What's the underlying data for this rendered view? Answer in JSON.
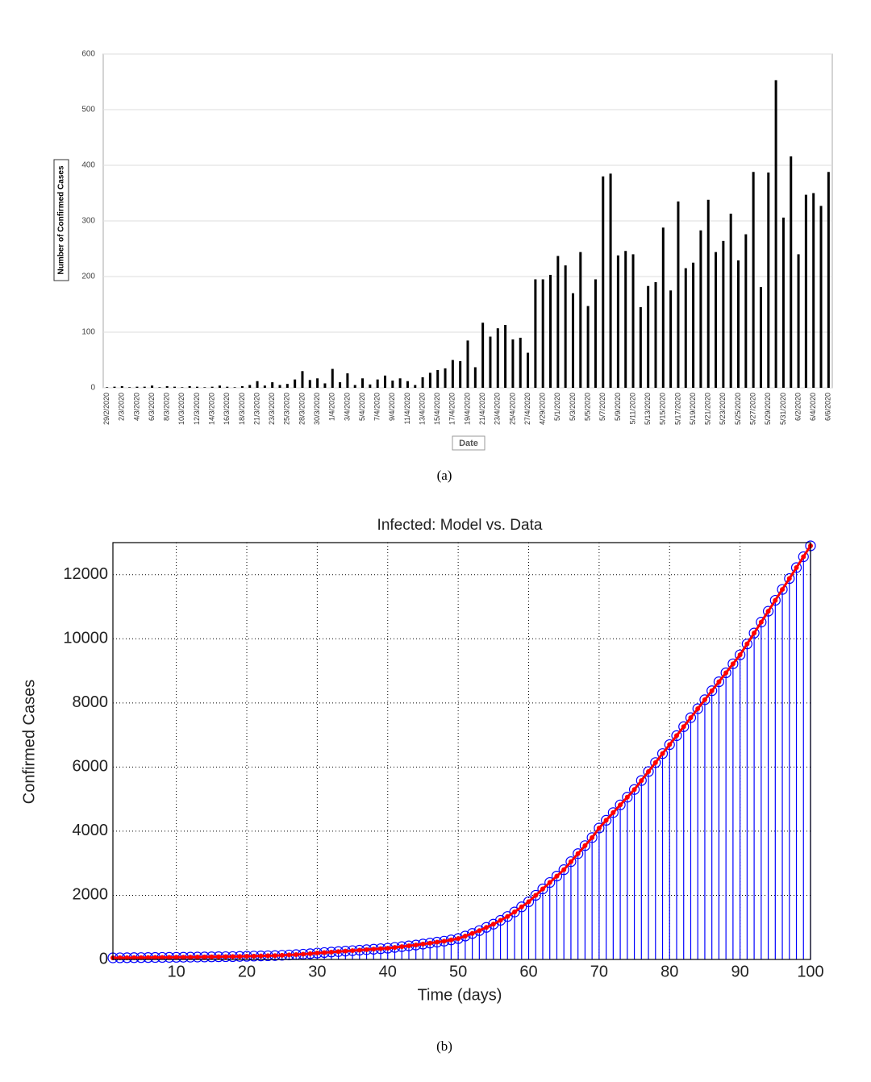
{
  "chart_data": [
    {
      "type": "bar",
      "xlabel": "Date",
      "ylabel": "Number of Confirmed Cases",
      "caption": "(a)",
      "color": "#000000",
      "grid": true,
      "ylim": [
        0,
        600
      ],
      "yticks": [
        0,
        100,
        200,
        300,
        400,
        500,
        600
      ],
      "categories": [
        "29/2/2020",
        null,
        "2/3/2020",
        null,
        "4/3/2020",
        null,
        "6/3/2020",
        null,
        "8/3/2020",
        null,
        "10/3/2020",
        null,
        "12/3/2020",
        null,
        "14/3/2020",
        null,
        "16/3/2020",
        null,
        "18/3/2020",
        null,
        "21/3/2020",
        null,
        "23/3/2020",
        null,
        "25/3/2020",
        null,
        "28/3/2020",
        null,
        "30/3/2020",
        null,
        "1/4/2020",
        null,
        "3/4/2020",
        null,
        "5/4/2020",
        null,
        "7/4/2020",
        null,
        "9/4/2020",
        null,
        "11/4/2020",
        null,
        "13/4/2020",
        null,
        "15/4/2020",
        null,
        "17/4/2020",
        null,
        "19/4/2020",
        null,
        "21/4/2020",
        null,
        "23/4/2020",
        null,
        "25/4/2020",
        null,
        "27/4/2020",
        null,
        "4/29/2020",
        null,
        "5/1/2020",
        null,
        "5/3/2020",
        null,
        "5/5/2020",
        null,
        "5/7/2020",
        null,
        "5/9/2020",
        null,
        "5/11/2020",
        null,
        "5/13/2020",
        null,
        "5/15/2020",
        null,
        "5/17/2020",
        null,
        "5/19/2020",
        null,
        "5/21/2020",
        null,
        "5/23/2020",
        null,
        "5/25/2020",
        null,
        "5/27/2020",
        null,
        "5/29/2020",
        null,
        "5/31/2020",
        null,
        "6/2/2020",
        null,
        "6/4/2020",
        null,
        "6/6/2020"
      ],
      "values": [
        1,
        2,
        3,
        1,
        2,
        2,
        4,
        1,
        3,
        2,
        1,
        3,
        2,
        1,
        2,
        4,
        2,
        1,
        3,
        5,
        12,
        4,
        10,
        5,
        7,
        15,
        30,
        14,
        17,
        8,
        34,
        10,
        26,
        5,
        17,
        6,
        15,
        22,
        13,
        17,
        12,
        5,
        19,
        27,
        32,
        35,
        50,
        48,
        85,
        37,
        117,
        92,
        107,
        113,
        87,
        90,
        63,
        195,
        195,
        203,
        237,
        220,
        170,
        244,
        147,
        195,
        380,
        385,
        238,
        246,
        240,
        145,
        183,
        190,
        288,
        175,
        335,
        215,
        225,
        283,
        338,
        244,
        264,
        313,
        229,
        276,
        388,
        181,
        387,
        553,
        306,
        416,
        240,
        347,
        350,
        327,
        388
      ]
    },
    {
      "type": "stem",
      "title": "Infected: Model vs. Data",
      "xlabel": "Time (days)",
      "ylabel": "Confirmed Cases",
      "caption": "(b)",
      "grid": true,
      "xlim": [
        1,
        100
      ],
      "xticks": [
        10,
        20,
        30,
        40,
        50,
        60,
        70,
        80,
        90,
        100
      ],
      "ylim": [
        0,
        13000
      ],
      "yticks": [
        0,
        2000,
        4000,
        6000,
        8000,
        10000,
        12000
      ],
      "x": [
        1,
        2,
        3,
        4,
        5,
        6,
        7,
        8,
        9,
        10,
        11,
        12,
        13,
        14,
        15,
        16,
        17,
        18,
        19,
        20,
        21,
        22,
        23,
        24,
        25,
        26,
        27,
        28,
        29,
        30,
        31,
        32,
        33,
        34,
        35,
        36,
        37,
        38,
        39,
        40,
        41,
        42,
        43,
        44,
        45,
        46,
        47,
        48,
        49,
        50,
        51,
        52,
        53,
        54,
        55,
        56,
        57,
        58,
        59,
        60,
        61,
        62,
        63,
        64,
        65,
        66,
        67,
        68,
        69,
        70,
        71,
        72,
        73,
        74,
        75,
        76,
        77,
        78,
        79,
        80,
        81,
        82,
        83,
        84,
        85,
        86,
        87,
        88,
        89,
        90,
        91,
        92,
        93,
        94,
        95,
        96,
        97,
        98,
        99,
        100
      ],
      "series": [
        {
          "style": "stem",
          "color": "#0000ff",
          "values": [
            50,
            52,
            54,
            56,
            58,
            60,
            62,
            64,
            66,
            68,
            70,
            72,
            75,
            78,
            81,
            84,
            87,
            90,
            95,
            100,
            105,
            110,
            115,
            120,
            130,
            140,
            150,
            165,
            180,
            200,
            215,
            230,
            245,
            260,
            275,
            290,
            305,
            320,
            335,
            350,
            375,
            400,
            425,
            450,
            480,
            510,
            540,
            570,
            610,
            650,
            730,
            810,
            900,
            1000,
            1100,
            1220,
            1340,
            1480,
            1640,
            1800,
            2000,
            2200,
            2400,
            2600,
            2800,
            3050,
            3300,
            3550,
            3800,
            4100,
            4340,
            4580,
            4820,
            5060,
            5300,
            5580,
            5860,
            6140,
            6420,
            6700,
            6980,
            7260,
            7540,
            7820,
            8100,
            8380,
            8660,
            8940,
            9220,
            9500,
            9840,
            10180,
            10520,
            10860,
            11200,
            11540,
            11880,
            12220,
            12560,
            12900
          ]
        },
        {
          "style": "line",
          "color": "#ff0000",
          "values": [
            50,
            52,
            54,
            56,
            58,
            60,
            62,
            64,
            66,
            68,
            70,
            72,
            75,
            78,
            81,
            84,
            87,
            90,
            95,
            100,
            105,
            110,
            115,
            120,
            130,
            140,
            150,
            165,
            180,
            200,
            215,
            230,
            245,
            260,
            275,
            290,
            305,
            320,
            335,
            350,
            375,
            400,
            425,
            450,
            480,
            510,
            540,
            570,
            610,
            650,
            730,
            810,
            900,
            1000,
            1100,
            1220,
            1340,
            1480,
            1640,
            1800,
            2000,
            2200,
            2400,
            2600,
            2800,
            3050,
            3300,
            3550,
            3800,
            4100,
            4340,
            4580,
            4820,
            5060,
            5300,
            5580,
            5860,
            6140,
            6420,
            6700,
            6980,
            7260,
            7540,
            7820,
            8100,
            8380,
            8660,
            8940,
            9220,
            9500,
            9840,
            10180,
            10520,
            10860,
            11200,
            11540,
            11880,
            12220,
            12560,
            12900
          ]
        }
      ]
    }
  ]
}
